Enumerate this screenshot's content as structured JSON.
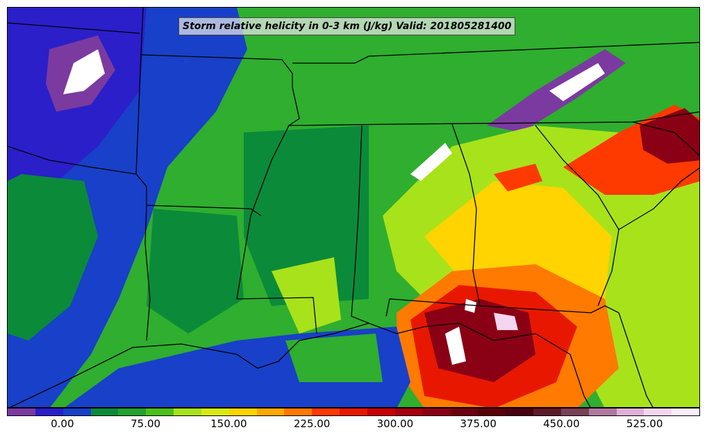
{
  "title": "Storm relative helicity in 0-3 km (J/kg) Valid: 201805281400",
  "colorbar": {
    "colors": [
      "#7b3aa0",
      "#2a1fc9",
      "#1840c8",
      "#0b8a3a",
      "#23a12d",
      "#4cbf1a",
      "#a8e21a",
      "#d8ea12",
      "#ffd400",
      "#ffaa00",
      "#ff7a00",
      "#ff3a00",
      "#e81800",
      "#c80000",
      "#a80010",
      "#8a0015",
      "#6e0010",
      "#5a0008",
      "#4a0010",
      "#5e1a2a",
      "#7a4058",
      "#b07aa0",
      "#e0b0d8",
      "#f4d6f0",
      "#fbeefa"
    ],
    "tick_labels": [
      "0.00",
      "75.00",
      "150.00",
      "225.00",
      "300.00",
      "375.00",
      "450.00",
      "525.00"
    ],
    "tick_values": [
      0,
      75,
      150,
      225,
      300,
      375,
      450,
      525
    ],
    "value_min": -50,
    "value_max": 575
  }
}
